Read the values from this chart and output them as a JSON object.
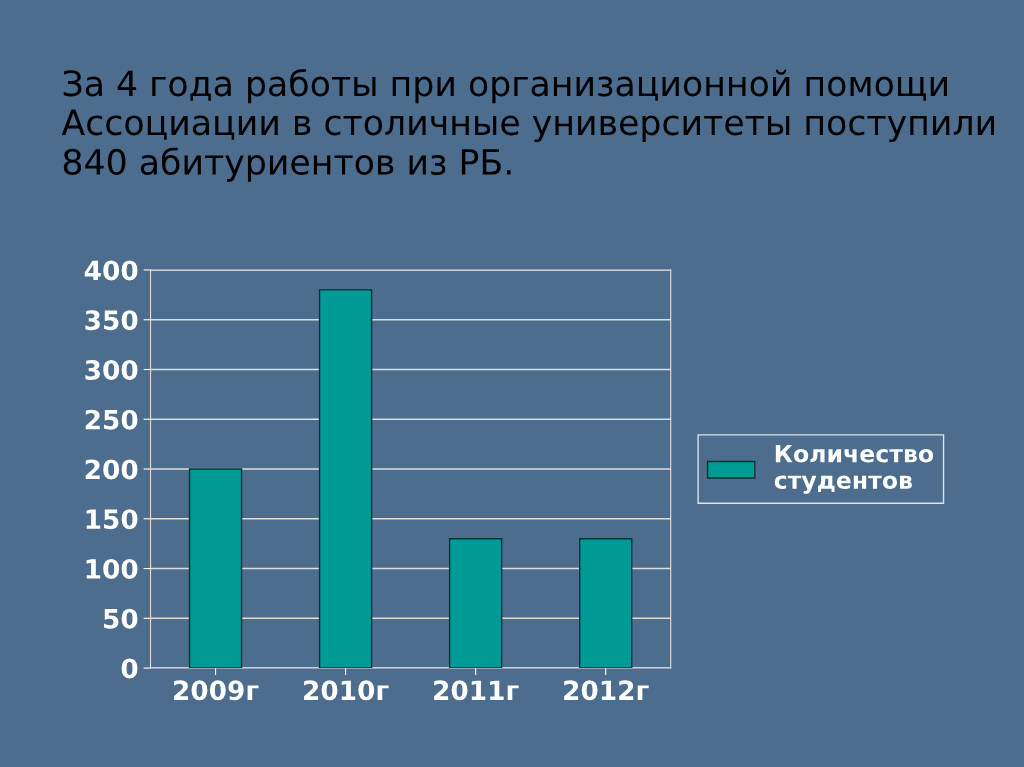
{
  "chart_data": {
    "type": "bar",
    "title": "За 4 года работы при организационной помощи Ассоциации в столичные университеты поступили 840 абитуриентов из РБ.",
    "categories": [
      "2009г",
      "2010г",
      "2011г",
      "2012г"
    ],
    "series": [
      {
        "name": "Количество студентов",
        "color": "#009b95",
        "values": [
          200,
          380,
          130,
          130
        ]
      }
    ],
    "ylim": [
      0,
      400
    ],
    "yticks": [
      0,
      50,
      100,
      150,
      200,
      250,
      300,
      350,
      400
    ],
    "grid": "y",
    "legend": "right"
  }
}
